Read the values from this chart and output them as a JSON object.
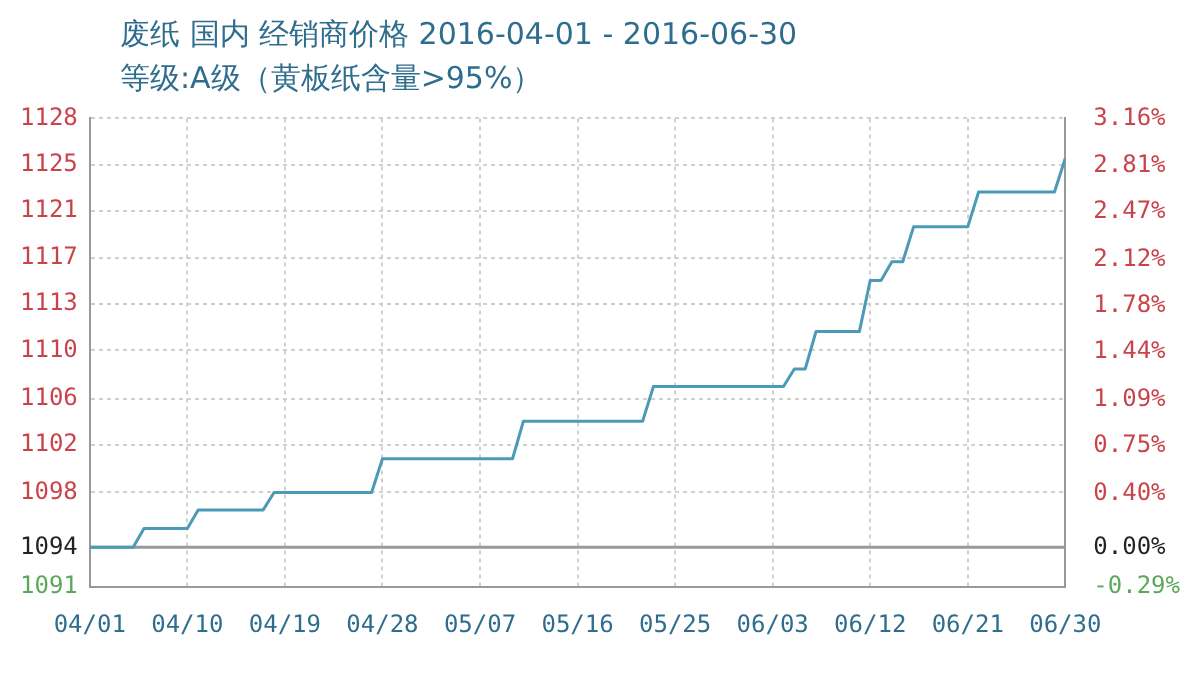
{
  "chart_data": {
    "type": "line",
    "title": "废纸 国内 经销商价格 2016-04-01 - 2016-06-30",
    "subtitle": "等级:A级（黄板纸含量>95%）",
    "x": [
      "2016-04-01",
      "2016-04-05",
      "2016-04-06",
      "2016-04-10",
      "2016-04-11",
      "2016-04-17",
      "2016-04-18",
      "2016-04-27",
      "2016-04-28",
      "2016-05-10",
      "2016-05-11",
      "2016-05-22",
      "2016-05-23",
      "2016-06-04",
      "2016-06-05",
      "2016-06-06",
      "2016-06-07",
      "2016-06-11",
      "2016-06-12",
      "2016-06-13",
      "2016-06-14",
      "2016-06-15",
      "2016-06-16",
      "2016-06-21",
      "2016-06-22",
      "2016-06-29",
      "2016-06-30"
    ],
    "series": [
      {
        "color": "#4a9ab8",
        "values": [
          1094,
          1094,
          1095.5,
          1095.5,
          1097,
          1097,
          1098.4,
          1098.4,
          1101.1,
          1101.1,
          1104.1,
          1104.1,
          1106.9,
          1106.9,
          1108.3,
          1108.3,
          1111.3,
          1111.3,
          1115.4,
          1115.4,
          1116.9,
          1116.9,
          1119.7,
          1119.7,
          1122.5,
          1122.5,
          1125.2
        ]
      }
    ],
    "xlim": [
      "2016-04-01",
      "2016-06-30"
    ],
    "xticks": [
      {
        "value": "2016-04-01",
        "label": "04/01"
      },
      {
        "value": "2016-04-10",
        "label": "04/10"
      },
      {
        "value": "2016-04-19",
        "label": "04/19"
      },
      {
        "value": "2016-04-28",
        "label": "04/28"
      },
      {
        "value": "2016-05-07",
        "label": "05/07"
      },
      {
        "value": "2016-05-16",
        "label": "05/16"
      },
      {
        "value": "2016-05-25",
        "label": "05/25"
      },
      {
        "value": "2016-06-03",
        "label": "06/03"
      },
      {
        "value": "2016-06-12",
        "label": "06/12"
      },
      {
        "value": "2016-06-21",
        "label": "06/21"
      },
      {
        "value": "2016-06-30",
        "label": "06/30"
      }
    ],
    "ylim": [
      1090.8,
      1128.4
    ],
    "yticks": [
      {
        "value": 1090.8,
        "label": "1091"
      },
      {
        "value": 1094,
        "label": "1094"
      },
      {
        "value": 1098.4,
        "label": "1098"
      },
      {
        "value": 1102.2,
        "label": "1102"
      },
      {
        "value": 1105.9,
        "label": "1106"
      },
      {
        "value": 1109.8,
        "label": "1110"
      },
      {
        "value": 1113.5,
        "label": "1113"
      },
      {
        "value": 1117.2,
        "label": "1117"
      },
      {
        "value": 1121,
        "label": "1121"
      },
      {
        "value": 1124.7,
        "label": "1125"
      },
      {
        "value": 1128.4,
        "label": "1128"
      }
    ],
    "y2lim": [
      -0.29,
      3.16
    ],
    "y2ticks": [
      {
        "value": -0.29,
        "label": "-0.29%"
      },
      {
        "value": 0,
        "label": "0.00%"
      },
      {
        "value": 0.4,
        "label": "0.40%"
      },
      {
        "value": 0.75,
        "label": "0.75%"
      },
      {
        "value": 1.09,
        "label": "1.09%"
      },
      {
        "value": 1.44,
        "label": "1.44%"
      },
      {
        "value": 1.78,
        "label": "1.78%"
      },
      {
        "value": 2.12,
        "label": "2.12%"
      },
      {
        "value": 2.47,
        "label": "2.47%"
      },
      {
        "value": 2.81,
        "label": "2.81%"
      },
      {
        "value": 3.16,
        "label": "3.16%"
      }
    ],
    "ref_lines": [
      {
        "axis": "y",
        "value": 1094,
        "color": "#999999"
      }
    ],
    "grid": true,
    "legend": false,
    "marker": "none",
    "line_style": "solid"
  }
}
